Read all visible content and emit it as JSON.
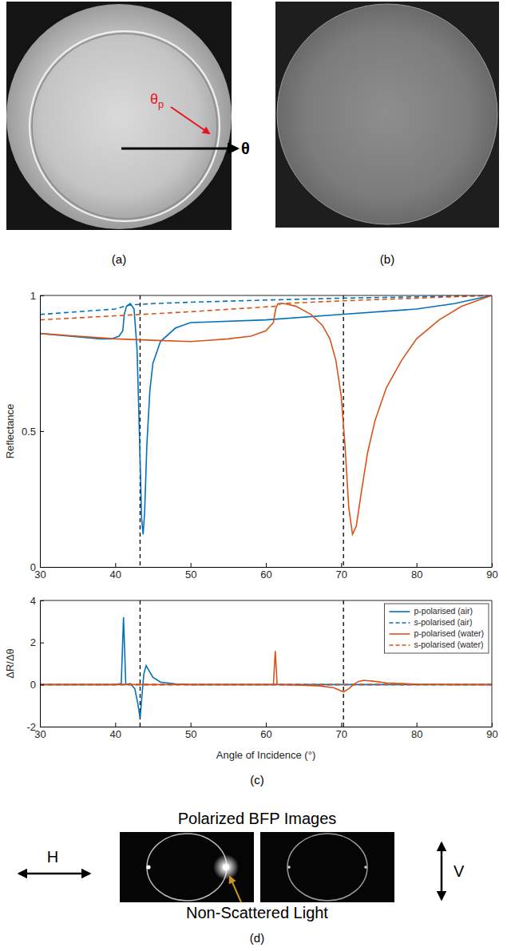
{
  "figure": {
    "panel_labels": [
      "(a)",
      "(b)",
      "(c)",
      "(d)"
    ],
    "a": {
      "axis_label": "θ",
      "marker_label": {
        "symbol": "θ",
        "subscript": "p"
      }
    },
    "d": {
      "title": "Polarized BFP Images",
      "left_polarization": "H",
      "right_polarization": "V",
      "annotation": "Non-Scattered Light"
    }
  },
  "chart_data": [
    {
      "type": "line",
      "y_label": "Reflectance",
      "xlim": [
        30,
        90
      ],
      "xticks": [
        30,
        40,
        50,
        60,
        70,
        80,
        90
      ],
      "ylim": [
        0,
        1
      ],
      "yticks": [
        0,
        0.5,
        1
      ],
      "vlines": [
        43.3,
        70.3
      ],
      "series": [
        {
          "color": "#0072bd",
          "line_style": "solid",
          "x": [
            30,
            34,
            38,
            39.5,
            40.5,
            41.0,
            41.2,
            41.5,
            42.0,
            42.5,
            42.9,
            43.2,
            43.5,
            43.7,
            43.9,
            44.2,
            44.6,
            45.0,
            46,
            48,
            50,
            60,
            70,
            80,
            85,
            90
          ],
          "values": [
            0.86,
            0.85,
            0.84,
            0.84,
            0.85,
            0.87,
            0.93,
            0.96,
            0.97,
            0.95,
            0.8,
            0.5,
            0.18,
            0.12,
            0.2,
            0.45,
            0.65,
            0.75,
            0.83,
            0.88,
            0.9,
            0.91,
            0.93,
            0.95,
            0.97,
            1.0
          ]
        },
        {
          "color": "#0072bd",
          "line_style": "dashed",
          "x": [
            30,
            35,
            40,
            41.2,
            42,
            45,
            50,
            60,
            70,
            80,
            90
          ],
          "values": [
            0.93,
            0.94,
            0.95,
            0.96,
            0.965,
            0.97,
            0.975,
            0.983,
            0.99,
            0.995,
            1.0
          ]
        },
        {
          "color": "#d95319",
          "line_style": "solid",
          "x": [
            30,
            35,
            40,
            45,
            50,
            55,
            58,
            60,
            61.0,
            61.3,
            61.6,
            62.5,
            64,
            66,
            67.5,
            68.5,
            69.3,
            70,
            70.5,
            71,
            71.5,
            72,
            72.7,
            73.5,
            74.5,
            76,
            78,
            80,
            83,
            86,
            90
          ],
          "values": [
            0.86,
            0.85,
            0.84,
            0.835,
            0.83,
            0.84,
            0.85,
            0.87,
            0.9,
            0.95,
            0.97,
            0.97,
            0.96,
            0.93,
            0.89,
            0.84,
            0.76,
            0.63,
            0.45,
            0.22,
            0.12,
            0.15,
            0.28,
            0.42,
            0.54,
            0.66,
            0.76,
            0.84,
            0.91,
            0.96,
            1.0
          ]
        },
        {
          "color": "#d95319",
          "line_style": "dashed",
          "x": [
            30,
            40,
            50,
            61.2,
            62,
            70,
            80,
            90
          ],
          "values": [
            0.91,
            0.925,
            0.94,
            0.96,
            0.97,
            0.98,
            0.99,
            1.0
          ]
        }
      ]
    },
    {
      "type": "line",
      "y_label": "ΔR/Δθ",
      "x_label": "Angle of Incidence (°)",
      "xlim": [
        30,
        90
      ],
      "xticks": [
        30,
        40,
        50,
        60,
        70,
        80,
        90
      ],
      "ylim": [
        -2,
        4
      ],
      "yticks": [
        -2,
        0,
        2,
        4
      ],
      "vlines": [
        43.3,
        70.3
      ],
      "legend": "upper right",
      "series": [
        {
          "name": "p-polarised (air)",
          "color": "#0072bd",
          "line_style": "solid",
          "x": [
            30,
            40,
            40.8,
            41.1,
            41.4,
            42,
            42.6,
            43.0,
            43.3,
            43.6,
            43.8,
            44.1,
            44.5,
            45,
            46,
            48,
            50,
            90
          ],
          "values": [
            0,
            0,
            0.05,
            3.2,
            0,
            0.05,
            -0.2,
            -0.9,
            -1.6,
            -0.3,
            0.5,
            0.9,
            0.65,
            0.35,
            0.12,
            0.03,
            0,
            0
          ]
        },
        {
          "name": "s-polarised (air)",
          "color": "#0072bd",
          "line_style": "dashed",
          "x": [
            30,
            90
          ],
          "values": [
            0,
            0
          ]
        },
        {
          "name": "p-polarised (water)",
          "color": "#d95319",
          "line_style": "solid",
          "x": [
            30,
            61.0,
            61.25,
            61.5,
            64,
            67,
            69,
            70.3,
            71,
            71.6,
            72.3,
            73,
            74.5,
            76,
            80,
            85,
            90
          ],
          "values": [
            0,
            0,
            1.6,
            0,
            -0.02,
            -0.06,
            -0.15,
            -0.35,
            -0.2,
            0,
            0.15,
            0.2,
            0.15,
            0.08,
            0.02,
            0,
            0
          ]
        },
        {
          "name": "s-polarised (water)",
          "color": "#d95319",
          "line_style": "dashed",
          "x": [
            30,
            90
          ],
          "values": [
            0,
            0
          ]
        }
      ]
    }
  ]
}
